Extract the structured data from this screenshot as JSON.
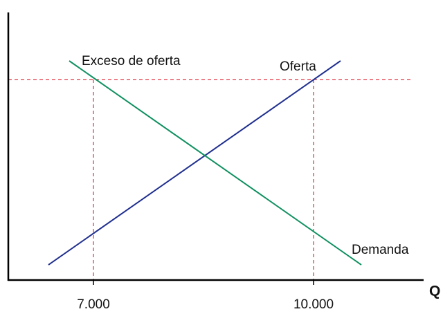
{
  "diagram": {
    "curves": {
      "supply": "Oferta",
      "demand": "Demanda"
    },
    "annotation": "Exceso de oferta",
    "x_axis": {
      "label": "Q",
      "ticks": [
        "7.000",
        "10.000"
      ]
    }
  }
}
